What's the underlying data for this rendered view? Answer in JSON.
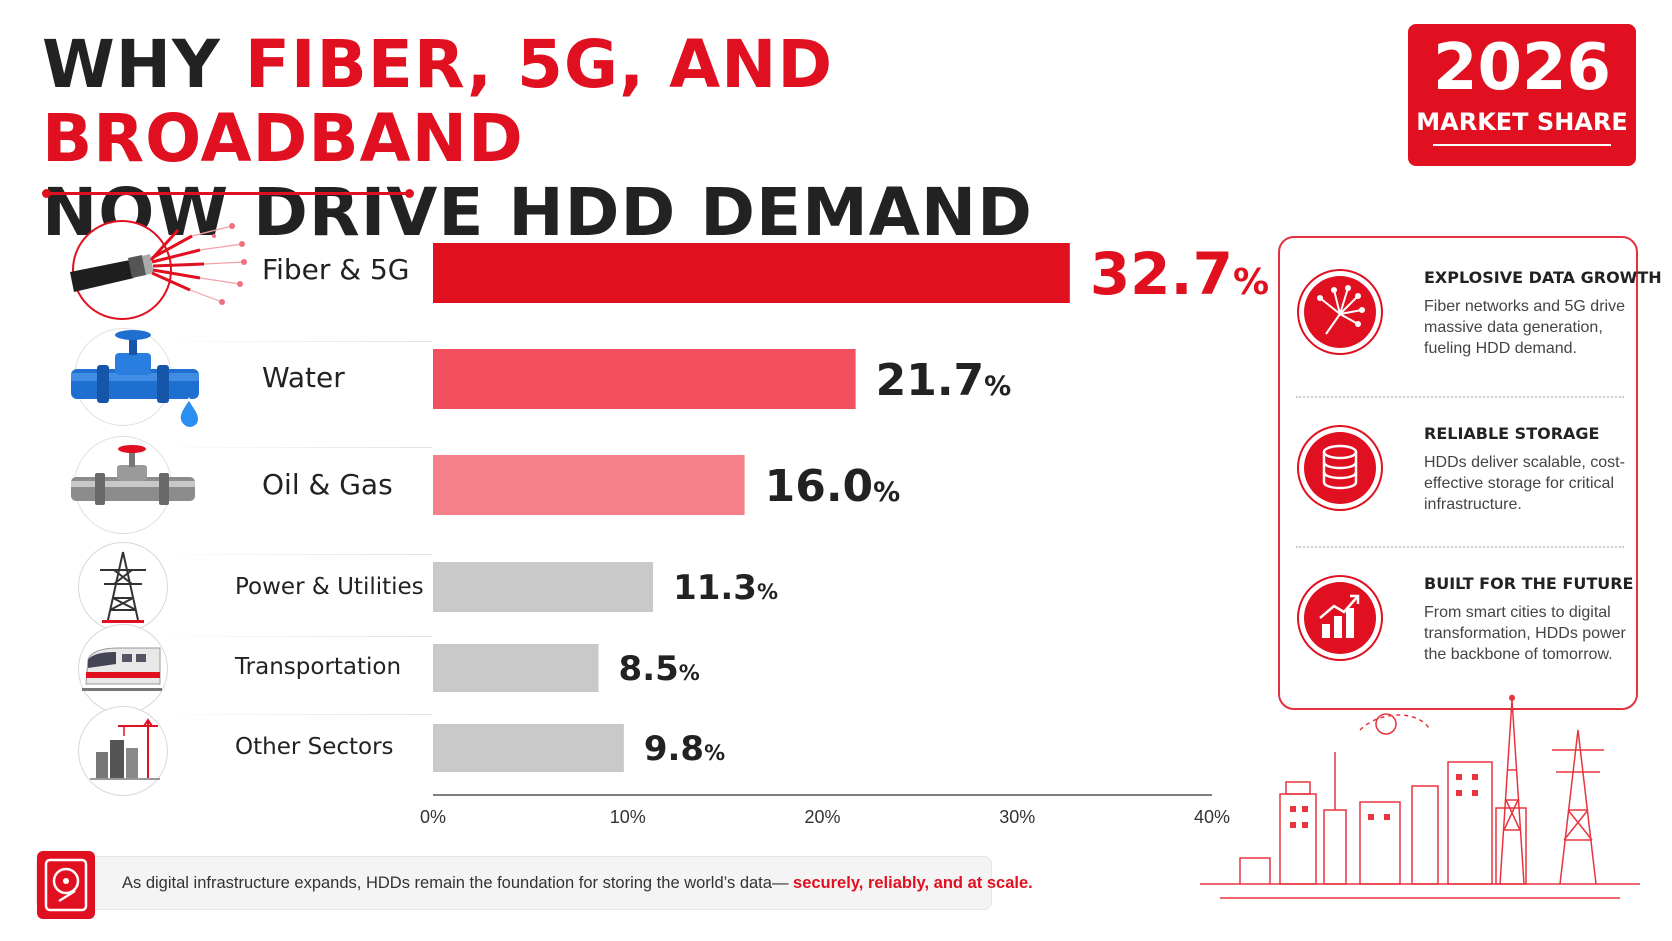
{
  "header": {
    "title_prefix": "WHY ",
    "title_highlight": "FIBER, 5G, AND BROADBAND",
    "title_line2": "NOW DRIVE HDD DEMAND",
    "badge_year": "2026",
    "badge_label": "MARKET SHARE"
  },
  "chart_data": {
    "type": "bar",
    "orientation": "horizontal",
    "categories": [
      "Fiber & 5G",
      "Water",
      "Oil & Gas",
      "Power & Utilities",
      "Transportation",
      "Other Sectors"
    ],
    "values": [
      32.7,
      21.7,
      16.0,
      11.3,
      8.5,
      9.8
    ],
    "value_labels": [
      "32.7",
      "21.7",
      "16.0",
      "11.3",
      "8.5",
      "9.8"
    ],
    "value_unit": "%",
    "bar_colors": [
      "#e0101f",
      "#f2505e",
      "#f5808a",
      "#c9c9c9",
      "#c9c9c9",
      "#c9c9c9"
    ],
    "value_colors": [
      "#e0101f",
      "#222222",
      "#222222",
      "#222222",
      "#222222",
      "#222222"
    ],
    "xlim": [
      0,
      40
    ],
    "xticks": [
      "0%",
      "10%",
      "20%",
      "30%",
      "40%"
    ],
    "grid": false
  },
  "features": [
    {
      "title": "EXPLOSIVE DATA GROWTH",
      "desc": "Fiber networks and 5G drive massive data generation, fueling HDD demand.",
      "icon": "fiber-optic-icon"
    },
    {
      "title": "RELIABLE STORAGE",
      "desc": "HDDs deliver scalable, cost-effective storage for critical infrastructure.",
      "icon": "database-icon"
    },
    {
      "title": "BUILT FOR THE FUTURE",
      "desc": "From smart cities to digital transformation, HDDs power the backbone of tomorrow.",
      "icon": "growth-chart-icon"
    }
  ],
  "footer": {
    "text": "As digital infrastructure expands, HDDs remain the foundation for storing the world’s data— ",
    "emphasis": "securely, reliably, and at scale.",
    "icon": "hard-drive-icon"
  },
  "colors": {
    "accent": "#e01020",
    "text": "#222222",
    "muted_bar": "#c9c9c9"
  }
}
